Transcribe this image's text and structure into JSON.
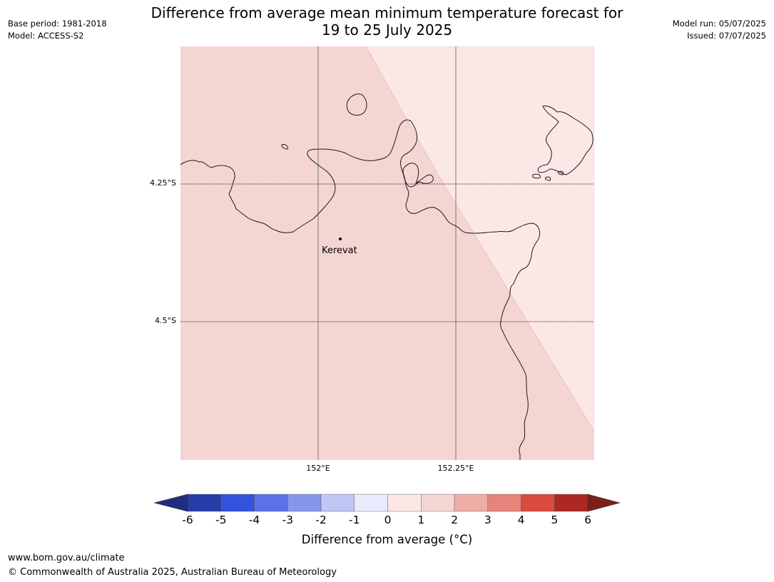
{
  "header": {
    "title_line1": "Difference from average mean minimum temperature forecast for",
    "title_line2": "19 to 25 July 2025",
    "base_period": "Base period: 1981-2018",
    "model": "Model: ACCESS-S2",
    "model_run": "Model run: 05/07/2025",
    "issued": "Issued: 07/07/2025"
  },
  "map": {
    "lat_labels": [
      "4.25°S",
      "4.5°S"
    ],
    "lon_labels": [
      "152°E",
      "152.25°E"
    ],
    "place_label": "Kerevat",
    "region_colors": {
      "anomaly_1_to_2": "#f5d5d2",
      "anomaly_0_to_1": "#fbe8e6"
    },
    "coastline_color": "#1a1a1a"
  },
  "colorbar": {
    "ticks": [
      "-6",
      "-5",
      "-4",
      "-3",
      "-2",
      "-1",
      "0",
      "1",
      "2",
      "3",
      "4",
      "5",
      "6"
    ],
    "colors": [
      "#283ca8",
      "#3352de",
      "#5b72e6",
      "#8597ec",
      "#bfc6f3",
      "#e8ebfb",
      "#fbe8e6",
      "#f5d5d2",
      "#eeaea8",
      "#e6837b",
      "#d94a3f",
      "#ad2820"
    ],
    "under_color": "#1f2d80",
    "over_color": "#7c1f19",
    "label": "Difference from average (°C)"
  },
  "footer": {
    "url": "www.bom.gov.au/climate",
    "copyright": "© Commonwealth of Australia 2025, Australian Bureau of Meteorology"
  }
}
